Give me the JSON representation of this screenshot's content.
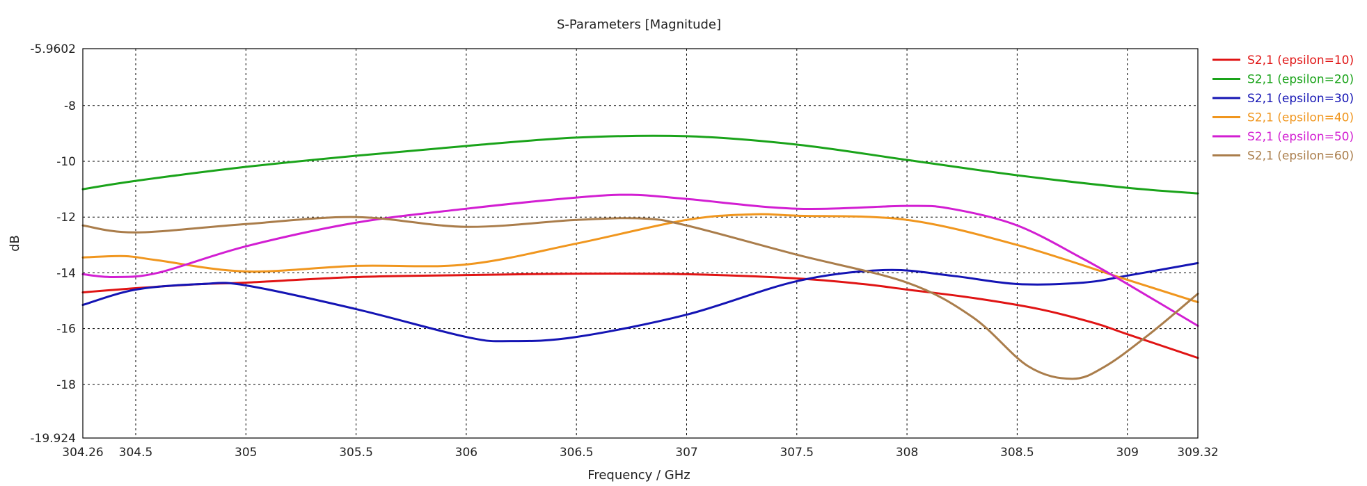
{
  "chart_data": {
    "type": "line",
    "title": "S-Parameters [Magnitude]",
    "xlabel": "Frequency / GHz",
    "ylabel": "dB",
    "xlim": [
      304.26,
      309.32
    ],
    "ylim": [
      -19.924,
      -5.9602
    ],
    "x_ticks": [
      304.26,
      304.5,
      305,
      305.5,
      306,
      306.5,
      307,
      307.5,
      308,
      308.5,
      309,
      309.32
    ],
    "x_tick_labels": [
      "304.26",
      "304.5",
      "305",
      "305.5",
      "306",
      "306.5",
      "307",
      "307.5",
      "308",
      "308.5",
      "309",
      "309.32"
    ],
    "y_ticks": [
      -5.9602,
      -8,
      -10,
      -12,
      -14,
      -16,
      -18,
      -19.924
    ],
    "y_tick_labels": [
      "-5.9602",
      "-8",
      "-10",
      "-12",
      "-14",
      "-16",
      "-18",
      "-19.924"
    ],
    "grid": true,
    "legend_position": "right",
    "series": [
      {
        "name": "S2,1 (epsilon=10)",
        "color": "#e01414",
        "x": [
          304.26,
          304.5,
          304.8,
          305.0,
          305.5,
          306.0,
          306.5,
          307.0,
          307.5,
          307.8,
          308.0,
          308.3,
          308.6,
          308.85,
          309.0,
          309.32
        ],
        "y": [
          -14.7,
          -14.55,
          -14.4,
          -14.35,
          -14.15,
          -14.08,
          -14.03,
          -14.05,
          -14.2,
          -14.4,
          -14.6,
          -14.9,
          -15.3,
          -15.8,
          -16.2,
          -17.05
        ]
      },
      {
        "name": "S2,1 (epsilon=20)",
        "color": "#1aa31a",
        "x": [
          304.26,
          304.5,
          305.0,
          305.5,
          306.0,
          306.5,
          307.0,
          307.5,
          308.0,
          308.5,
          309.0,
          309.32
        ],
        "y": [
          -11.0,
          -10.7,
          -10.2,
          -9.8,
          -9.45,
          -9.15,
          -9.1,
          -9.4,
          -9.95,
          -10.5,
          -10.95,
          -11.15
        ]
      },
      {
        "name": "S2,1 (epsilon=30)",
        "color": "#1414b4",
        "x": [
          304.26,
          304.5,
          304.8,
          305.0,
          305.5,
          306.0,
          306.2,
          306.5,
          307.0,
          307.5,
          307.9,
          308.2,
          308.5,
          308.8,
          309.0,
          309.32
        ],
        "y": [
          -15.15,
          -14.6,
          -14.4,
          -14.45,
          -15.3,
          -16.3,
          -16.45,
          -16.3,
          -15.5,
          -14.3,
          -13.9,
          -14.1,
          -14.4,
          -14.35,
          -14.1,
          -13.65
        ]
      },
      {
        "name": "S2,1 (epsilon=40)",
        "color": "#f0961e",
        "x": [
          304.26,
          304.45,
          304.6,
          305.0,
          305.5,
          306.0,
          306.5,
          307.0,
          307.3,
          307.5,
          308.0,
          308.5,
          309.0,
          309.32
        ],
        "y": [
          -13.45,
          -13.4,
          -13.55,
          -13.95,
          -13.75,
          -13.7,
          -12.95,
          -12.1,
          -11.9,
          -11.95,
          -12.1,
          -13.0,
          -14.25,
          -15.05
        ]
      },
      {
        "name": "S2,1 (epsilon=50)",
        "color": "#d21ed2",
        "x": [
          304.26,
          304.4,
          304.6,
          305.0,
          305.5,
          306.0,
          306.5,
          306.75,
          307.0,
          307.5,
          308.0,
          308.2,
          308.5,
          308.8,
          309.0,
          309.32
        ],
        "y": [
          -14.05,
          -14.15,
          -14.0,
          -13.05,
          -12.2,
          -11.7,
          -11.3,
          -11.2,
          -11.35,
          -11.7,
          -11.6,
          -11.7,
          -12.3,
          -13.5,
          -14.4,
          -15.9
        ]
      },
      {
        "name": "S2,1 (epsilon=60)",
        "color": "#aa7d4b",
        "x": [
          304.26,
          304.5,
          305.0,
          305.5,
          306.0,
          306.5,
          306.8,
          307.0,
          307.5,
          308.0,
          308.3,
          308.55,
          308.75,
          308.9,
          309.1,
          309.32
        ],
        "y": [
          -12.3,
          -12.55,
          -12.25,
          -12.0,
          -12.35,
          -12.1,
          -12.05,
          -12.3,
          -13.35,
          -14.35,
          -15.6,
          -17.35,
          -17.8,
          -17.35,
          -16.2,
          -14.75
        ]
      }
    ]
  }
}
